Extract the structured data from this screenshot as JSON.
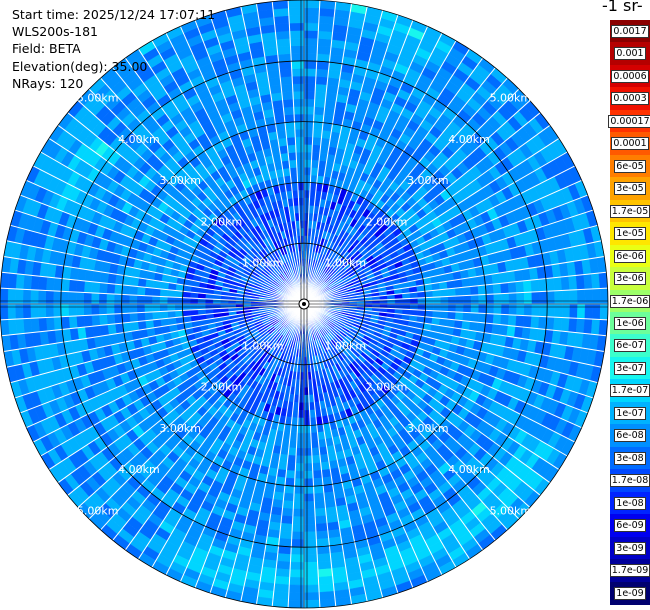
{
  "info": {
    "start_time": "Start time: 2025/12/24 17:07:11",
    "device": "WLS200s-181",
    "field": "Field: BETA",
    "elevation": "Elevation(deg): 35.00",
    "nrays": "NRays: 120"
  },
  "colorbar": {
    "unit_title": "-1 sr-",
    "labels": [
      "0.0017",
      "0.001",
      "0.0006",
      "0.0003",
      "0.00017",
      "0.0001",
      "6e-05",
      "3e-05",
      "1.7e-05",
      "1e-05",
      "6e-06",
      "3e-06",
      "1.7e-06",
      "1e-06",
      "6e-07",
      "3e-07",
      "1.7e-07",
      "1e-07",
      "6e-08",
      "3e-08",
      "1.7e-08",
      "1e-08",
      "6e-09",
      "3e-09",
      "1.7e-09",
      "1e-09"
    ],
    "colors": [
      "#8b0000",
      "#b50000",
      "#d40000",
      "#f01000",
      "#ff3300",
      "#ff5a00",
      "#ff7e00",
      "#ffa200",
      "#ffc400",
      "#ffe600",
      "#eaff14",
      "#c8ff3c",
      "#9cff6a",
      "#6cff9a",
      "#3cffcc",
      "#18f6ee",
      "#00d6ff",
      "#00b2ff",
      "#0090ff",
      "#006cff",
      "#0048ff",
      "#0024ff",
      "#0000f0",
      "#0000c8",
      "#00009a",
      "#000070"
    ]
  },
  "chart_data": {
    "type": "heatmap",
    "projection": "polar-ppi",
    "field": "BETA",
    "elevation_deg": 35.0,
    "n_rays": 120,
    "max_range_km": 5.0,
    "scale": "log",
    "range_rings_km": [
      1,
      2,
      3,
      4,
      5
    ],
    "ring_labels": [
      "1.00km",
      "2.00km",
      "3.00km",
      "4.00km",
      "5.00km"
    ],
    "value_min": 1e-09,
    "value_max": 0.0017,
    "background_level": 6e-08,
    "features": [
      {
        "azimuth_start_deg": 10,
        "azimuth_end_deg": 30,
        "range_km": 4.9,
        "level": 1.7e-07
      },
      {
        "azimuth_start_deg": 120,
        "azimuth_end_deg": 210,
        "range_km": 4.5,
        "level": 1.7e-07
      },
      {
        "azimuth_start_deg": 290,
        "azimuth_end_deg": 310,
        "range_km": 4.2,
        "level": 1.7e-07
      },
      {
        "azimuth_start_deg": 0,
        "azimuth_end_deg": 360,
        "range_km": 1.2,
        "level": 1e-08
      }
    ]
  }
}
